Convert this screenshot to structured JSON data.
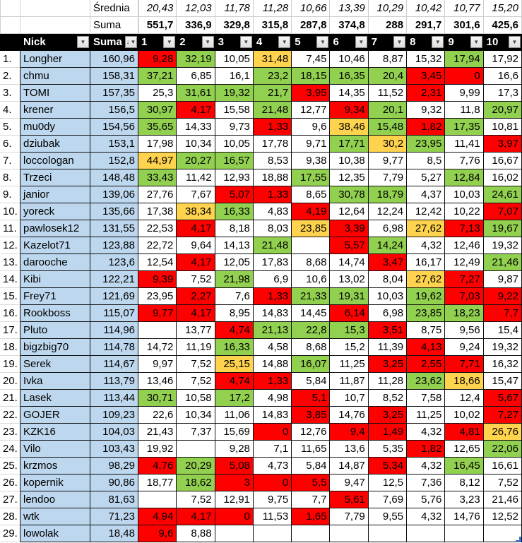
{
  "colors": {
    "cell_red": "#FF0000",
    "cell_green": "#92D050",
    "cell_yellow": "#FFD34D",
    "name_column_blue": "#BDD7EE",
    "header_bg": "#000000",
    "header_text": "#FFFFFF",
    "end_marker_blue": "#4472C4"
  },
  "stats": {
    "srednia_label": "Średnia",
    "suma_label": "Suma",
    "srednia_values": [
      "20,43",
      "12,03",
      "11,78",
      "11,28",
      "10,66",
      "13,39",
      "10,29",
      "10,42",
      "10,77",
      "15,20"
    ],
    "suma_values": [
      "551,7",
      "336,9",
      "329,8",
      "315,8",
      "287,8",
      "374,8",
      "288",
      "291,7",
      "301,6",
      "425,6"
    ]
  },
  "header": {
    "nick_label": "Nick",
    "suma_label": "Suma",
    "round_columns": [
      "1",
      "2",
      "3",
      "4",
      "5",
      "6",
      "7",
      "8",
      "9",
      "10"
    ],
    "filter_icon": "▼",
    "sort_icon": "↓"
  },
  "rows": [
    {
      "rank": "1.",
      "nick": "Longher",
      "suma": "160,96",
      "cells": [
        [
          "9,28",
          "r"
        ],
        [
          "32,19",
          "g"
        ],
        [
          "10,05",
          "w"
        ],
        [
          "31,48",
          "y"
        ],
        [
          "7,45",
          "w"
        ],
        [
          "10,46",
          "w"
        ],
        [
          "8,87",
          "w"
        ],
        [
          "15,32",
          "w"
        ],
        [
          "17,94",
          "g"
        ],
        [
          "17,92",
          "w"
        ]
      ]
    },
    {
      "rank": "2.",
      "nick": "chmu",
      "suma": "158,31",
      "cells": [
        [
          "37,21",
          "g"
        ],
        [
          "6,85",
          "w"
        ],
        [
          "16,1",
          "w"
        ],
        [
          "23,2",
          "g"
        ],
        [
          "18,15",
          "g"
        ],
        [
          "16,35",
          "g"
        ],
        [
          "20,4",
          "g"
        ],
        [
          "3,45",
          "r"
        ],
        [
          "0",
          "r"
        ],
        [
          "16,6",
          "w"
        ]
      ]
    },
    {
      "rank": "3.",
      "nick": "TOMI",
      "suma": "157,35",
      "cells": [
        [
          "25,3",
          "w"
        ],
        [
          "31,61",
          "g"
        ],
        [
          "19,32",
          "g"
        ],
        [
          "21,7",
          "g"
        ],
        [
          "3,95",
          "r"
        ],
        [
          "14,35",
          "w"
        ],
        [
          "11,52",
          "w"
        ],
        [
          "2,31",
          "r"
        ],
        [
          "9,99",
          "w"
        ],
        [
          "17,3",
          "w"
        ]
      ]
    },
    {
      "rank": "4.",
      "nick": "krener",
      "suma": "156,5",
      "cells": [
        [
          "30,97",
          "g"
        ],
        [
          "4,17",
          "r"
        ],
        [
          "15,58",
          "w"
        ],
        [
          "21,48",
          "g"
        ],
        [
          "12,77",
          "w"
        ],
        [
          "9,34",
          "r"
        ],
        [
          "20,1",
          "g"
        ],
        [
          "9,32",
          "w"
        ],
        [
          "11,8",
          "w"
        ],
        [
          "20,97",
          "g"
        ]
      ]
    },
    {
      "rank": "5.",
      "nick": "mu0dy",
      "suma": "154,56",
      "cells": [
        [
          "35,65",
          "g"
        ],
        [
          "14,33",
          "w"
        ],
        [
          "9,73",
          "w"
        ],
        [
          "1,33",
          "r"
        ],
        [
          "9,6",
          "w"
        ],
        [
          "38,46",
          "y"
        ],
        [
          "15,48",
          "g"
        ],
        [
          "1,82",
          "r"
        ],
        [
          "17,35",
          "g"
        ],
        [
          "10,81",
          "w"
        ]
      ]
    },
    {
      "rank": "6.",
      "nick": "dziubak",
      "suma": "153,1",
      "cells": [
        [
          "17,98",
          "w"
        ],
        [
          "10,34",
          "w"
        ],
        [
          "10,05",
          "w"
        ],
        [
          "17,78",
          "w"
        ],
        [
          "9,71",
          "w"
        ],
        [
          "17,71",
          "g"
        ],
        [
          "30,2",
          "y"
        ],
        [
          "23,95",
          "g"
        ],
        [
          "11,41",
          "w"
        ],
        [
          "3,97",
          "r"
        ]
      ]
    },
    {
      "rank": "7.",
      "nick": "loccologan",
      "suma": "152,8",
      "cells": [
        [
          "44,97",
          "y"
        ],
        [
          "20,27",
          "g"
        ],
        [
          "16,57",
          "g"
        ],
        [
          "8,53",
          "w"
        ],
        [
          "9,38",
          "w"
        ],
        [
          "10,38",
          "w"
        ],
        [
          "9,77",
          "w"
        ],
        [
          "8,5",
          "w"
        ],
        [
          "7,76",
          "w"
        ],
        [
          "16,67",
          "w"
        ]
      ]
    },
    {
      "rank": "8.",
      "nick": "Trzeci",
      "suma": "148,48",
      "cells": [
        [
          "33,43",
          "g"
        ],
        [
          "11,42",
          "w"
        ],
        [
          "12,93",
          "w"
        ],
        [
          "18,88",
          "w"
        ],
        [
          "17,55",
          "g"
        ],
        [
          "12,35",
          "w"
        ],
        [
          "7,79",
          "w"
        ],
        [
          "5,27",
          "w"
        ],
        [
          "12,84",
          "g"
        ],
        [
          "16,02",
          "w"
        ]
      ]
    },
    {
      "rank": "9.",
      "nick": "janior",
      "suma": "139,06",
      "cells": [
        [
          "27,76",
          "w"
        ],
        [
          "7,67",
          "w"
        ],
        [
          "5,07",
          "r"
        ],
        [
          "1,33",
          "r"
        ],
        [
          "8,65",
          "w"
        ],
        [
          "30,78",
          "g"
        ],
        [
          "18,79",
          "g"
        ],
        [
          "4,37",
          "w"
        ],
        [
          "10,03",
          "w"
        ],
        [
          "24,61",
          "g"
        ]
      ]
    },
    {
      "rank": "10.",
      "nick": "yoreck",
      "suma": "135,66",
      "cells": [
        [
          "17,38",
          "w"
        ],
        [
          "38,34",
          "y"
        ],
        [
          "16,33",
          "g"
        ],
        [
          "4,83",
          "w"
        ],
        [
          "4,19",
          "r"
        ],
        [
          "12,64",
          "w"
        ],
        [
          "12,24",
          "w"
        ],
        [
          "12,42",
          "w"
        ],
        [
          "10,22",
          "w"
        ],
        [
          "7,07",
          "r"
        ]
      ]
    },
    {
      "rank": "11.",
      "nick": "pawlosek12",
      "suma": "131,55",
      "cells": [
        [
          "22,53",
          "w"
        ],
        [
          "4,17",
          "r"
        ],
        [
          "8,18",
          "w"
        ],
        [
          "8,03",
          "w"
        ],
        [
          "23,85",
          "y"
        ],
        [
          "3,39",
          "r"
        ],
        [
          "6,98",
          "w"
        ],
        [
          "27,62",
          "y"
        ],
        [
          "7,13",
          "r"
        ],
        [
          "19,67",
          "g"
        ]
      ]
    },
    {
      "rank": "12.",
      "nick": "Kazelot71",
      "suma": "123,88",
      "cells": [
        [
          "22,72",
          "w"
        ],
        [
          "9,64",
          "w"
        ],
        [
          "14,13",
          "w"
        ],
        [
          "21,48",
          "g"
        ],
        [
          "",
          "w"
        ],
        [
          "5,57",
          "r"
        ],
        [
          "14,24",
          "g"
        ],
        [
          "4,32",
          "w"
        ],
        [
          "12,46",
          "w"
        ],
        [
          "19,32",
          "w"
        ]
      ]
    },
    {
      "rank": "13.",
      "nick": "darooche",
      "suma": "123,6",
      "cells": [
        [
          "12,54",
          "w"
        ],
        [
          "4,17",
          "r"
        ],
        [
          "12,05",
          "w"
        ],
        [
          "17,83",
          "w"
        ],
        [
          "8,68",
          "w"
        ],
        [
          "14,74",
          "w"
        ],
        [
          "3,47",
          "r"
        ],
        [
          "16,17",
          "w"
        ],
        [
          "12,49",
          "w"
        ],
        [
          "21,46",
          "g"
        ]
      ]
    },
    {
      "rank": "14.",
      "nick": "Kibi",
      "suma": "122,21",
      "cells": [
        [
          "9,39",
          "r"
        ],
        [
          "7,52",
          "w"
        ],
        [
          "21,98",
          "g"
        ],
        [
          "6,9",
          "w"
        ],
        [
          "10,6",
          "w"
        ],
        [
          "13,02",
          "w"
        ],
        [
          "8,04",
          "w"
        ],
        [
          "27,62",
          "y"
        ],
        [
          "7,27",
          "r"
        ],
        [
          "9,87",
          "w"
        ]
      ]
    },
    {
      "rank": "15.",
      "nick": "Frey71",
      "suma": "121,69",
      "cells": [
        [
          "23,95",
          "w"
        ],
        [
          "2,27",
          "r"
        ],
        [
          "7,6",
          "w"
        ],
        [
          "1,33",
          "r"
        ],
        [
          "21,33",
          "g"
        ],
        [
          "19,31",
          "g"
        ],
        [
          "10,03",
          "w"
        ],
        [
          "19,62",
          "g"
        ],
        [
          "7,03",
          "r"
        ],
        [
          "9,22",
          "r"
        ]
      ]
    },
    {
      "rank": "16.",
      "nick": "Rookboss",
      "suma": "115,07",
      "cells": [
        [
          "9,77",
          "r"
        ],
        [
          "4,17",
          "r"
        ],
        [
          "8,95",
          "w"
        ],
        [
          "14,83",
          "w"
        ],
        [
          "14,45",
          "w"
        ],
        [
          "6,14",
          "r"
        ],
        [
          "6,98",
          "w"
        ],
        [
          "23,85",
          "g"
        ],
        [
          "18,23",
          "g"
        ],
        [
          "7,7",
          "r"
        ]
      ]
    },
    {
      "rank": "17.",
      "nick": "Pluto",
      "suma": "114,96",
      "cells": [
        [
          "",
          "w"
        ],
        [
          "13,77",
          "w"
        ],
        [
          "4,74",
          "r"
        ],
        [
          "21,13",
          "g"
        ],
        [
          "22,8",
          "g"
        ],
        [
          "15,3",
          "g"
        ],
        [
          "3,51",
          "r"
        ],
        [
          "8,75",
          "w"
        ],
        [
          "9,56",
          "w"
        ],
        [
          "15,4",
          "w"
        ]
      ]
    },
    {
      "rank": "18.",
      "nick": "bigzbig70",
      "suma": "114,78",
      "cells": [
        [
          "14,72",
          "w"
        ],
        [
          "11,19",
          "w"
        ],
        [
          "16,33",
          "g"
        ],
        [
          "4,58",
          "w"
        ],
        [
          "8,68",
          "w"
        ],
        [
          "15,2",
          "w"
        ],
        [
          "11,39",
          "w"
        ],
        [
          "4,13",
          "r"
        ],
        [
          "9,24",
          "w"
        ],
        [
          "19,32",
          "w"
        ]
      ]
    },
    {
      "rank": "19.",
      "nick": "Serek",
      "suma": "114,67",
      "cells": [
        [
          "9,97",
          "w"
        ],
        [
          "7,52",
          "w"
        ],
        [
          "25,15",
          "y"
        ],
        [
          "14,88",
          "w"
        ],
        [
          "16,07",
          "g"
        ],
        [
          "11,25",
          "w"
        ],
        [
          "3,25",
          "r"
        ],
        [
          "2,55",
          "r"
        ],
        [
          "7,71",
          "r"
        ],
        [
          "16,32",
          "w"
        ]
      ]
    },
    {
      "rank": "20.",
      "nick": "Ivka",
      "suma": "113,79",
      "cells": [
        [
          "13,46",
          "w"
        ],
        [
          "7,52",
          "w"
        ],
        [
          "4,74",
          "r"
        ],
        [
          "1,33",
          "r"
        ],
        [
          "5,84",
          "w"
        ],
        [
          "11,87",
          "w"
        ],
        [
          "11,28",
          "w"
        ],
        [
          "23,62",
          "g"
        ],
        [
          "18,66",
          "y"
        ],
        [
          "15,47",
          "w"
        ]
      ]
    },
    {
      "rank": "21.",
      "nick": "Lasek",
      "suma": "113,44",
      "cells": [
        [
          "30,71",
          "g"
        ],
        [
          "10,58",
          "w"
        ],
        [
          "17,2",
          "g"
        ],
        [
          "4,98",
          "w"
        ],
        [
          "5,1",
          "r"
        ],
        [
          "10,7",
          "w"
        ],
        [
          "8,52",
          "w"
        ],
        [
          "7,58",
          "w"
        ],
        [
          "12,4",
          "w"
        ],
        [
          "5,67",
          "r"
        ]
      ]
    },
    {
      "rank": "22.",
      "nick": "GOJER",
      "suma": "109,23",
      "cells": [
        [
          "22,6",
          "w"
        ],
        [
          "10,34",
          "w"
        ],
        [
          "11,06",
          "w"
        ],
        [
          "14,83",
          "w"
        ],
        [
          "3,85",
          "r"
        ],
        [
          "14,76",
          "w"
        ],
        [
          "3,25",
          "r"
        ],
        [
          "11,25",
          "w"
        ],
        [
          "10,02",
          "w"
        ],
        [
          "7,27",
          "r"
        ]
      ]
    },
    {
      "rank": "23.",
      "nick": "KZK16",
      "suma": "104,03",
      "cells": [
        [
          "21,43",
          "w"
        ],
        [
          "7,37",
          "w"
        ],
        [
          "15,69",
          "w"
        ],
        [
          "0",
          "r"
        ],
        [
          "12,76",
          "w"
        ],
        [
          "9,4",
          "r"
        ],
        [
          "1,49",
          "r"
        ],
        [
          "4,32",
          "w"
        ],
        [
          "4,81",
          "r"
        ],
        [
          "26,76",
          "y"
        ]
      ]
    },
    {
      "rank": "24.",
      "nick": "Vilo",
      "suma": "103,43",
      "cells": [
        [
          "19,92",
          "w"
        ],
        [
          "",
          "w"
        ],
        [
          "9,28",
          "w"
        ],
        [
          "7,1",
          "w"
        ],
        [
          "11,65",
          "w"
        ],
        [
          "13,6",
          "w"
        ],
        [
          "5,35",
          "w"
        ],
        [
          "1,82",
          "r"
        ],
        [
          "12,65",
          "w"
        ],
        [
          "22,06",
          "g"
        ]
      ]
    },
    {
      "rank": "25.",
      "nick": "krzmos",
      "suma": "98,29",
      "cells": [
        [
          "4,76",
          "r"
        ],
        [
          "20,29",
          "g"
        ],
        [
          "5,08",
          "r"
        ],
        [
          "4,73",
          "w"
        ],
        [
          "5,84",
          "w"
        ],
        [
          "14,87",
          "w"
        ],
        [
          "5,34",
          "r"
        ],
        [
          "4,32",
          "w"
        ],
        [
          "16,45",
          "g"
        ],
        [
          "16,61",
          "w"
        ]
      ]
    },
    {
      "rank": "26.",
      "nick": "kopernik",
      "suma": "90,86",
      "cells": [
        [
          "18,77",
          "w"
        ],
        [
          "18,62",
          "g"
        ],
        [
          "3",
          "r"
        ],
        [
          "0",
          "r"
        ],
        [
          "5,5",
          "r"
        ],
        [
          "9,47",
          "w"
        ],
        [
          "12,5",
          "w"
        ],
        [
          "7,36",
          "w"
        ],
        [
          "8,12",
          "w"
        ],
        [
          "7,52",
          "w"
        ]
      ]
    },
    {
      "rank": "27.",
      "nick": "lendoo",
      "suma": "81,63",
      "cells": [
        [
          "",
          "w"
        ],
        [
          "7,52",
          "w"
        ],
        [
          "12,91",
          "w"
        ],
        [
          "9,75",
          "w"
        ],
        [
          "7,7",
          "w"
        ],
        [
          "5,61",
          "r"
        ],
        [
          "7,69",
          "w"
        ],
        [
          "5,76",
          "w"
        ],
        [
          "3,23",
          "w"
        ],
        [
          "21,46",
          "w"
        ]
      ]
    },
    {
      "rank": "28.",
      "nick": "wtk",
      "suma": "71,23",
      "cells": [
        [
          "4,94",
          "r"
        ],
        [
          "4,17",
          "r"
        ],
        [
          "0",
          "r"
        ],
        [
          "11,53",
          "w"
        ],
        [
          "1,65",
          "r"
        ],
        [
          "7,79",
          "w"
        ],
        [
          "9,55",
          "w"
        ],
        [
          "4,32",
          "w"
        ],
        [
          "14,76",
          "w"
        ],
        [
          "12,52",
          "w"
        ]
      ]
    },
    {
      "rank": "29.",
      "nick": "lowolak",
      "suma": "18,48",
      "cells": [
        [
          "9,6",
          "r"
        ],
        [
          "8,88",
          "w"
        ],
        [
          "",
          "w"
        ],
        [
          "",
          "w"
        ],
        [
          "",
          "w"
        ],
        [
          "",
          "w"
        ],
        [
          "",
          "w"
        ],
        [
          "",
          "w"
        ],
        [
          "",
          "w"
        ],
        [
          "",
          "w"
        ]
      ]
    }
  ]
}
